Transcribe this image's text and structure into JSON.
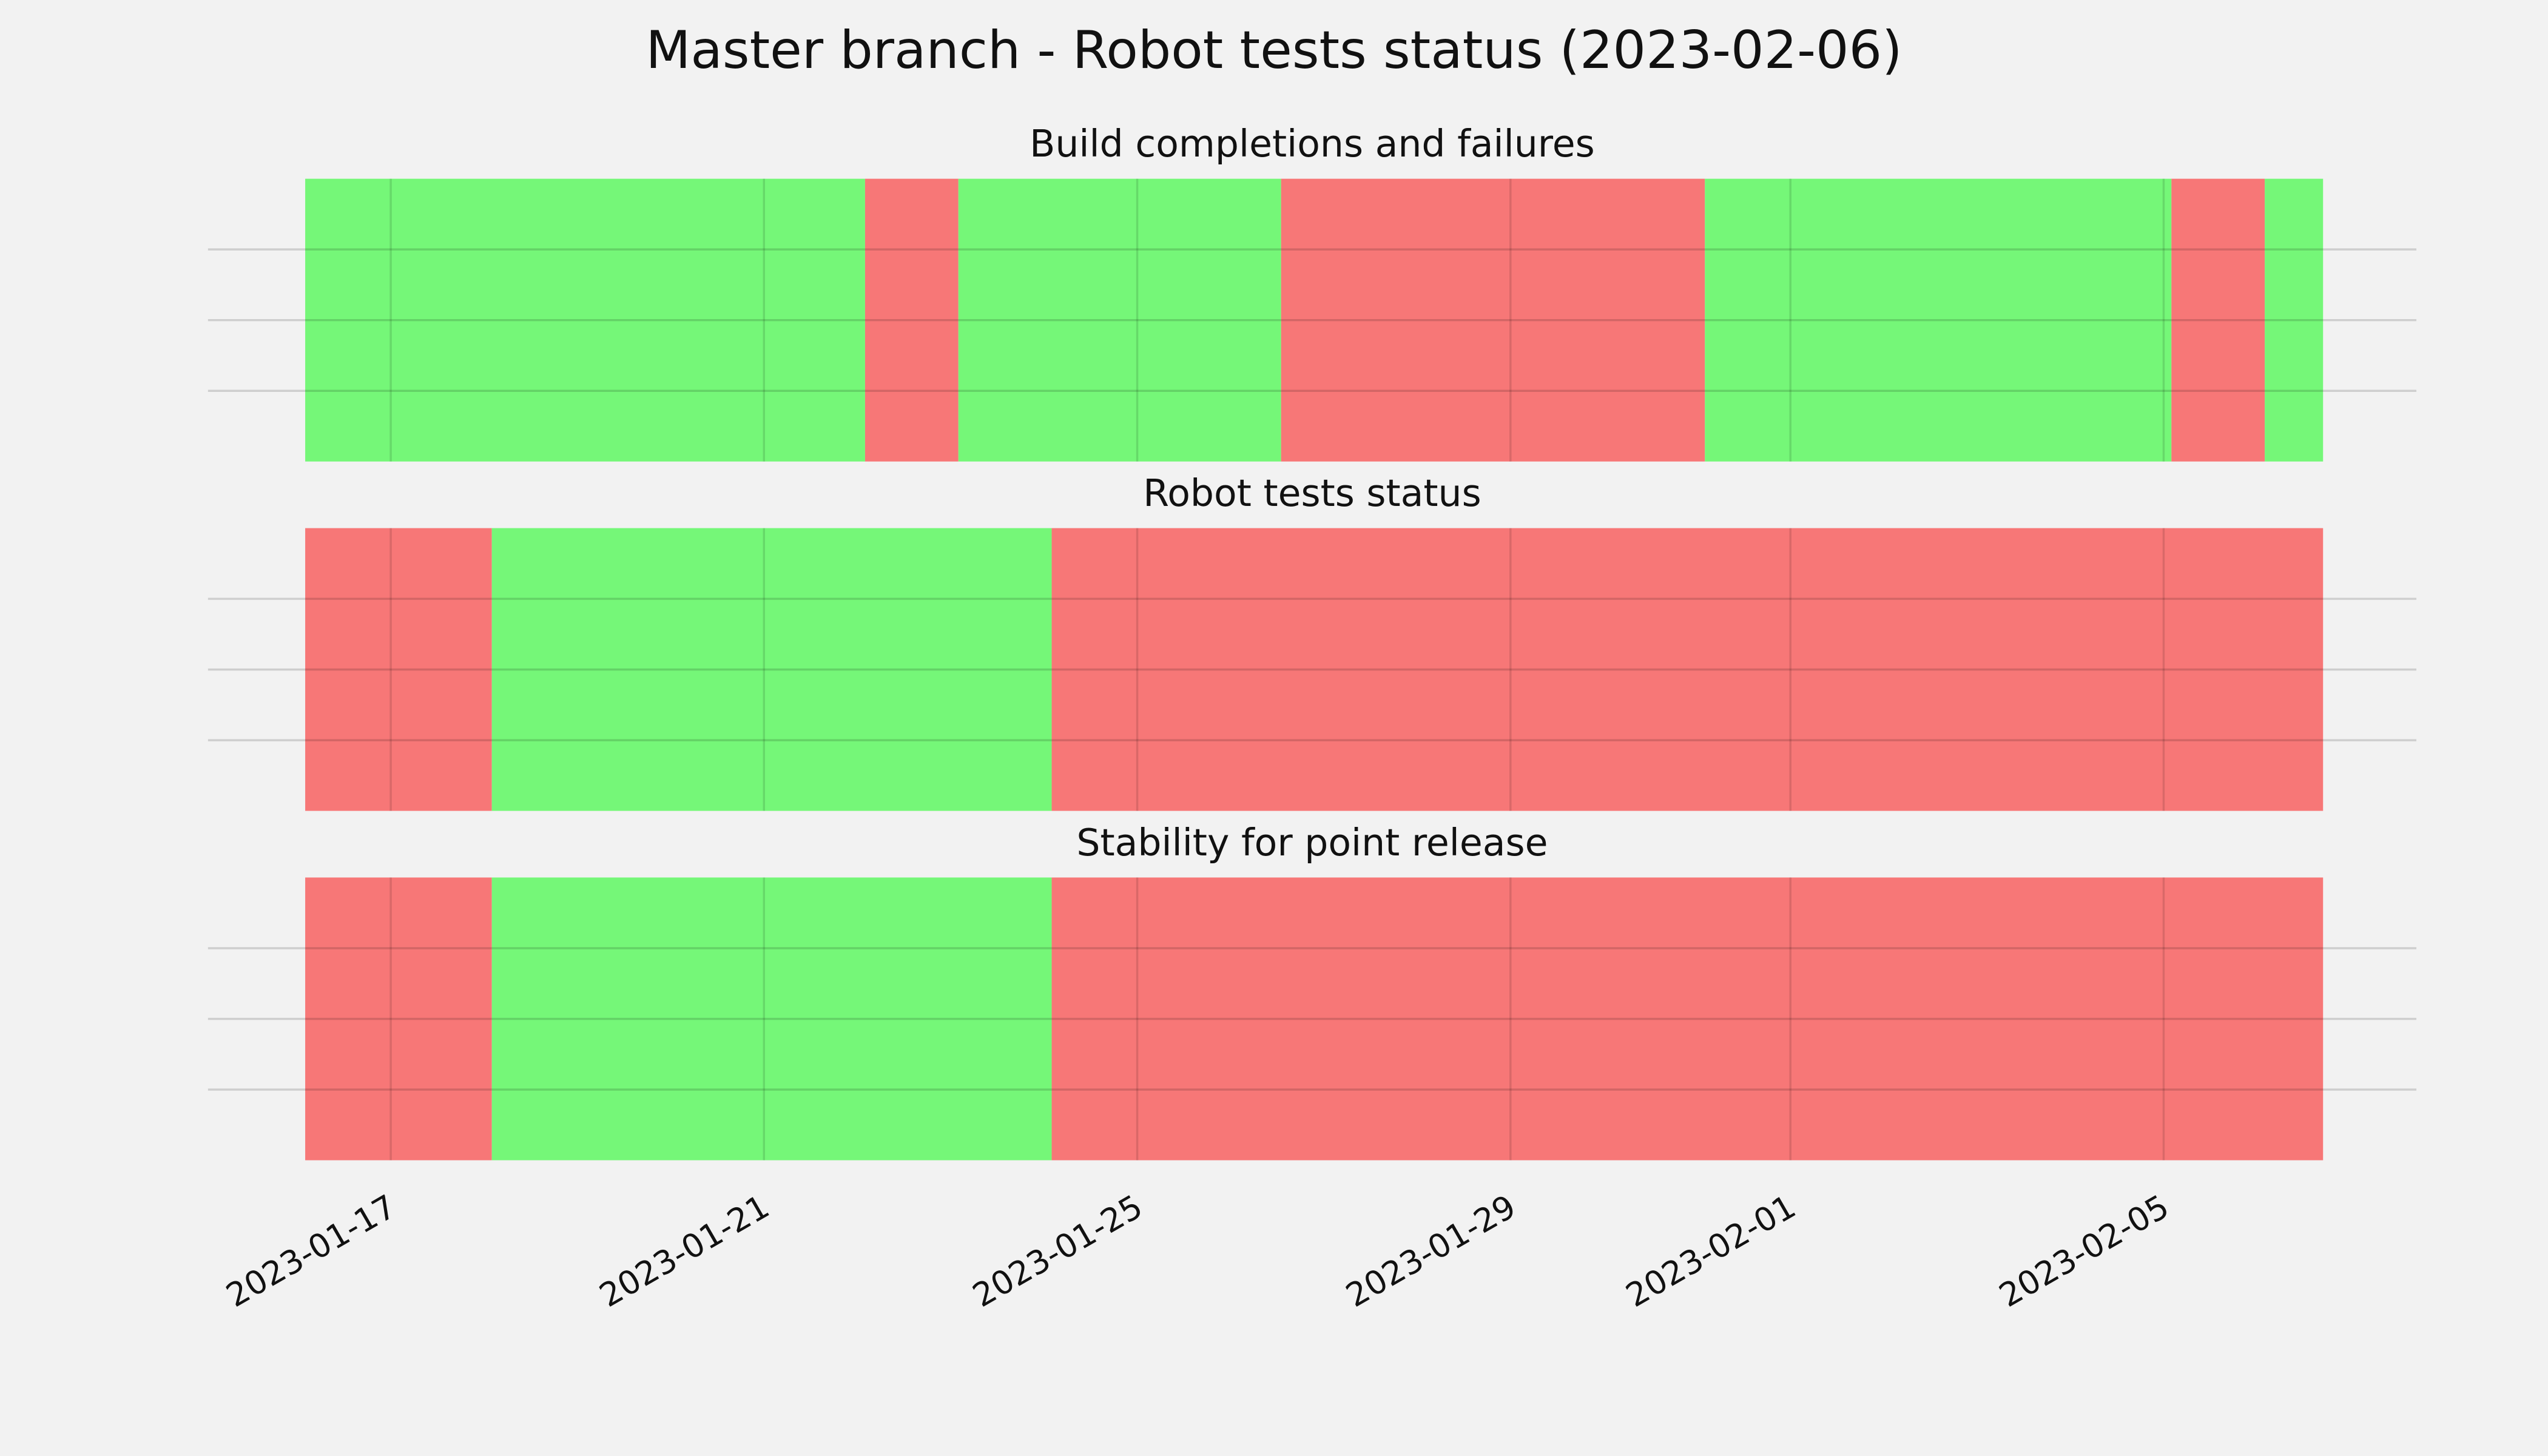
{
  "chart_data": [
    {
      "type": "timeline",
      "suptitle": "Master branch - Robot tests status (2023-02-06)",
      "title": "Build completions and failures",
      "x": [
        "2023-01-16T02:00",
        "2023-01-22T02:00",
        "2023-01-23T02:00",
        "2023-01-26T13:00",
        "2023-01-31T02:00",
        "2023-02-05T02:00",
        "2023-02-06T02:00",
        "2023-02-06T17:00"
      ],
      "colors": [
        "#75f778",
        "#f77777",
        "#75f778",
        "#f77777",
        "#75f778",
        "#f77777",
        "#75f778"
      ],
      "xlim": [
        "2023-01-15T01:00",
        "2023-02-07T17:00"
      ],
      "ylim": [
        0,
        1
      ],
      "yticks": [
        0.25,
        0.5,
        0.75
      ],
      "xticks": [
        "2023-01-17",
        "2023-01-21",
        "2023-01-25",
        "2023-01-29",
        "2023-02-01",
        "2023-02-05"
      ],
      "grid": true
    },
    {
      "type": "timeline",
      "title": "Robot tests status",
      "x": [
        "2023-01-16T02:00",
        "2023-01-18T02:00",
        "2023-01-24T02:00",
        "2023-02-06T17:00"
      ],
      "colors": [
        "#f77777",
        "#75f778",
        "#f77777"
      ],
      "xlim": [
        "2023-01-15T01:00",
        "2023-02-07T17:00"
      ],
      "ylim": [
        0,
        1
      ],
      "yticks": [
        0.25,
        0.5,
        0.75
      ],
      "grid": true
    },
    {
      "type": "timeline",
      "title": "Stability for point release",
      "x": [
        "2023-01-16T02:00",
        "2023-01-18T02:00",
        "2023-01-24T02:00",
        "2023-02-06T17:00"
      ],
      "colors": [
        "#f77777",
        "#75f778",
        "#f77777"
      ],
      "xlim": [
        "2023-01-15T01:00",
        "2023-02-07T17:00"
      ],
      "ylim": [
        0,
        1
      ],
      "yticks": [
        0.25,
        0.5,
        0.75
      ],
      "grid": true
    }
  ]
}
